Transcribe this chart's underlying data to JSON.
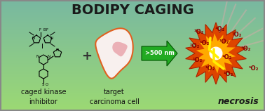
{
  "title": "BODIPY CAGING",
  "title_fontsize": 14,
  "title_fontweight": "bold",
  "title_color": "#1a1a1a",
  "label_caged": "caged kinase\ninhibitor",
  "label_target": "target\ncarcinoma cell",
  "label_necrosis": "necrosis",
  "label_arrow": ">500 nm",
  "label_o2": "¹O₂",
  "arrow_color": "#22aa22",
  "cell_outline_color": "#e06020",
  "cell_fill_color": "#f8f0ee",
  "nucleus_color": "#e8a0a8",
  "explosion_outer_color": "#dd4400",
  "explosion_inner_color": "#ffaa00",
  "explosion_center_color": "#ffffff",
  "o2_color": "#880000",
  "lightning_color": "#ffee00",
  "border_color": "#888888",
  "label_fontsize": 7,
  "necrosis_fontsize": 9,
  "o2_fontsize": 6
}
